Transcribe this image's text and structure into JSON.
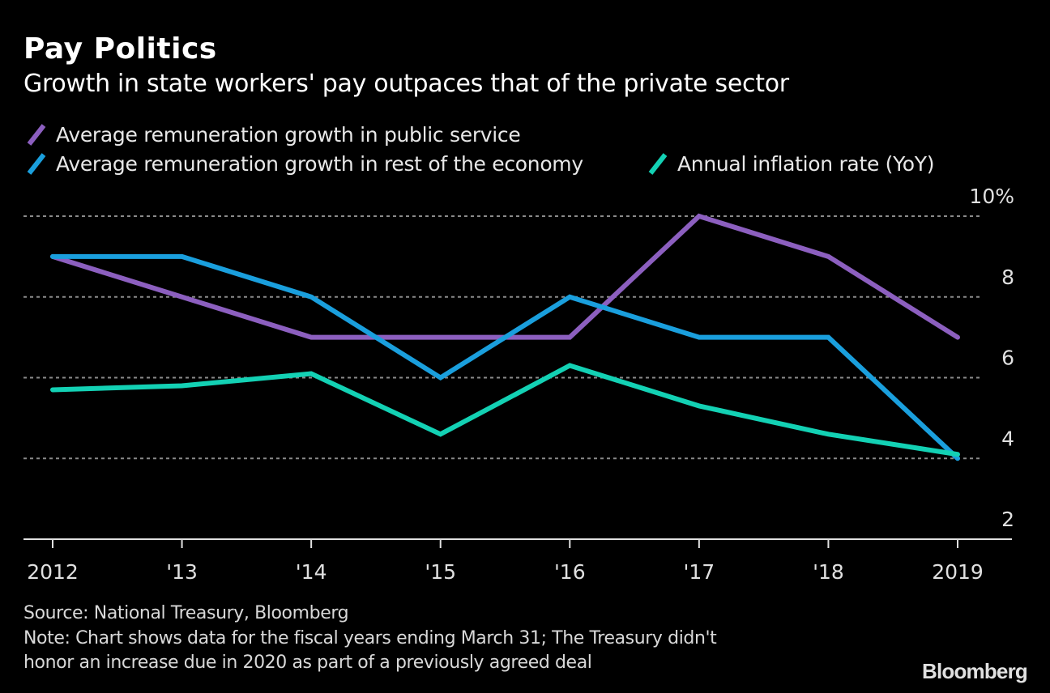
{
  "header": {
    "title": "Pay Politics",
    "subtitle": "Growth in state workers' pay outpaces that of the private sector"
  },
  "legend": [
    {
      "label": "Average remuneration growth in public service",
      "color": "#8c5fbf"
    },
    {
      "label": "Average remuneration growth in rest of the economy",
      "color": "#1a9fdd"
    },
    {
      "label": "Annual inflation rate (YoY)",
      "color": "#13d1b4"
    }
  ],
  "footer": {
    "source": "Source: National Treasury, Bloomberg",
    "note_line1": "Note: Chart shows data for the fiscal years ending March 31; The Treasury didn't",
    "note_line2": "honor an increase due in 2020 as part of a previously agreed deal",
    "logo": "Bloomberg"
  },
  "chart_data": {
    "type": "line",
    "title": "Pay Politics",
    "subtitle": "Growth in state workers' pay outpaces that of the private sector",
    "xlabel": "",
    "ylabel": "",
    "x": [
      "2012",
      "'13",
      "'14",
      "'15",
      "'16",
      "'17",
      "'18",
      "2019"
    ],
    "ylim": [
      2,
      10
    ],
    "yticks": [
      2,
      4,
      6,
      8,
      10
    ],
    "ytick_labels": [
      "2",
      "4",
      "6",
      "8",
      "10%"
    ],
    "grid": "horizontal dotted",
    "y_axis_side": "right",
    "legend_position": "top-left",
    "series": [
      {
        "name": "Average remuneration growth in public service",
        "color": "#8c5fbf",
        "values": [
          9.0,
          8.0,
          7.0,
          7.0,
          7.0,
          10.0,
          9.0,
          7.0
        ]
      },
      {
        "name": "Average remuneration growth in rest of the economy",
        "color": "#1a9fdd",
        "values": [
          9.0,
          9.0,
          8.0,
          6.0,
          8.0,
          7.0,
          7.0,
          4.0
        ]
      },
      {
        "name": "Annual inflation rate (YoY)",
        "color": "#13d1b4",
        "values": [
          5.7,
          5.8,
          6.1,
          4.6,
          6.3,
          5.3,
          4.6,
          4.1
        ]
      }
    ]
  }
}
